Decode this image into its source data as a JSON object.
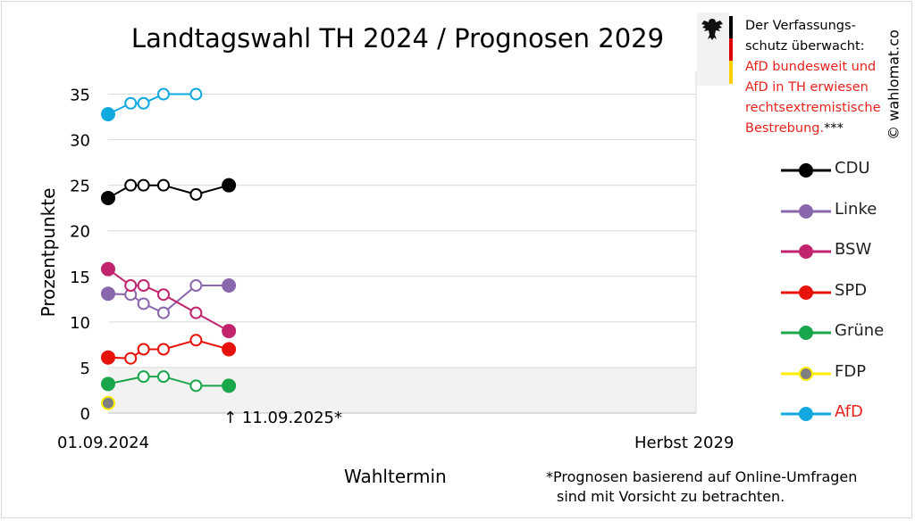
{
  "title": "Landtagswahl TH 2024 / Prognosen 2029",
  "notice": {
    "line1": "Der Verfassungs-",
    "line2": "schutz überwacht:",
    "line3": "AfD bundesweit und",
    "line4": "AfD in TH erwiesen",
    "line5": "rechtsextremistische",
    "line6": "Bestrebung.",
    "line6_suffix": "***"
  },
  "copyright": "© wahlomat.co",
  "footnote": {
    "line1": "*Prognosen basierend auf Online-Umfragen",
    "line2": "sind mit Vorsicht zu betrachten."
  },
  "date_annotation": "↑ 11.09.2025*",
  "colors": {
    "CDU": "#000000",
    "Linke": "#8a66ad",
    "BSW": "#c1246c",
    "SPD": "#e8120c",
    "Grüne": "#1aa64b",
    "FDP": "#ffed00",
    "AfD": "#12a8e0",
    "threshold_band": "#f2f2f2",
    "notice_red": "#e8231d"
  },
  "chart_data": {
    "type": "line",
    "ylabel": "Prozentpunkte",
    "xlabel": "Wahltermin",
    "x_start_label": "01.09.2024",
    "x_end_label": "Herbst 2029",
    "x_domain": [
      "2024-09-01",
      "2029-09-01"
    ],
    "ylim": [
      0,
      37.5
    ],
    "yticks": [
      0,
      5,
      10,
      15,
      20,
      25,
      30,
      35
    ],
    "grid": true,
    "threshold_band": 5,
    "legend_position": "right",
    "series": [
      {
        "name": "CDU",
        "points": [
          {
            "date": "2024-09-01",
            "value": 23.6,
            "kind": "result"
          },
          {
            "date": "2024-11-10",
            "value": 25,
            "kind": "forecast"
          },
          {
            "date": "2024-12-20",
            "value": 25,
            "kind": "forecast"
          },
          {
            "date": "2025-02-20",
            "value": 25,
            "kind": "forecast"
          },
          {
            "date": "2025-06-01",
            "value": 24,
            "kind": "forecast"
          },
          {
            "date": "2025-09-11",
            "value": 25,
            "kind": "current"
          }
        ]
      },
      {
        "name": "Linke",
        "points": [
          {
            "date": "2024-09-01",
            "value": 13.1,
            "kind": "result"
          },
          {
            "date": "2024-11-10",
            "value": 13,
            "kind": "forecast"
          },
          {
            "date": "2024-12-20",
            "value": 12,
            "kind": "forecast"
          },
          {
            "date": "2025-02-20",
            "value": 11,
            "kind": "forecast"
          },
          {
            "date": "2025-06-01",
            "value": 14,
            "kind": "forecast"
          },
          {
            "date": "2025-09-11",
            "value": 14,
            "kind": "current"
          }
        ]
      },
      {
        "name": "BSW",
        "points": [
          {
            "date": "2024-09-01",
            "value": 15.8,
            "kind": "result"
          },
          {
            "date": "2024-11-10",
            "value": 14,
            "kind": "forecast"
          },
          {
            "date": "2024-12-20",
            "value": 14,
            "kind": "forecast"
          },
          {
            "date": "2025-02-20",
            "value": 13,
            "kind": "forecast"
          },
          {
            "date": "2025-06-01",
            "value": 11,
            "kind": "forecast"
          },
          {
            "date": "2025-09-11",
            "value": 9,
            "kind": "current"
          }
        ]
      },
      {
        "name": "SPD",
        "points": [
          {
            "date": "2024-09-01",
            "value": 6.1,
            "kind": "result"
          },
          {
            "date": "2024-11-10",
            "value": 6,
            "kind": "forecast"
          },
          {
            "date": "2024-12-20",
            "value": 7,
            "kind": "forecast"
          },
          {
            "date": "2025-02-20",
            "value": 7,
            "kind": "forecast"
          },
          {
            "date": "2025-06-01",
            "value": 8,
            "kind": "forecast"
          },
          {
            "date": "2025-09-11",
            "value": 7,
            "kind": "current"
          }
        ]
      },
      {
        "name": "Grüne",
        "points": [
          {
            "date": "2024-09-01",
            "value": 3.2,
            "kind": "result"
          },
          {
            "date": "2024-12-20",
            "value": 4,
            "kind": "forecast"
          },
          {
            "date": "2025-02-20",
            "value": 4,
            "kind": "forecast"
          },
          {
            "date": "2025-06-01",
            "value": 3,
            "kind": "forecast"
          },
          {
            "date": "2025-09-11",
            "value": 3,
            "kind": "current"
          }
        ]
      },
      {
        "name": "FDP",
        "points": [
          {
            "date": "2024-09-01",
            "value": 1.1,
            "kind": "result"
          }
        ]
      },
      {
        "name": "AfD",
        "points": [
          {
            "date": "2024-09-01",
            "value": 32.8,
            "kind": "result"
          },
          {
            "date": "2024-11-10",
            "value": 34,
            "kind": "forecast"
          },
          {
            "date": "2024-12-20",
            "value": 34,
            "kind": "forecast"
          },
          {
            "date": "2025-02-20",
            "value": 35,
            "kind": "forecast"
          },
          {
            "date": "2025-06-01",
            "value": 35,
            "kind": "forecast"
          }
        ]
      }
    ],
    "legend": [
      "CDU",
      "Linke",
      "BSW",
      "SPD",
      "Grüne",
      "FDP",
      "AfD"
    ]
  }
}
